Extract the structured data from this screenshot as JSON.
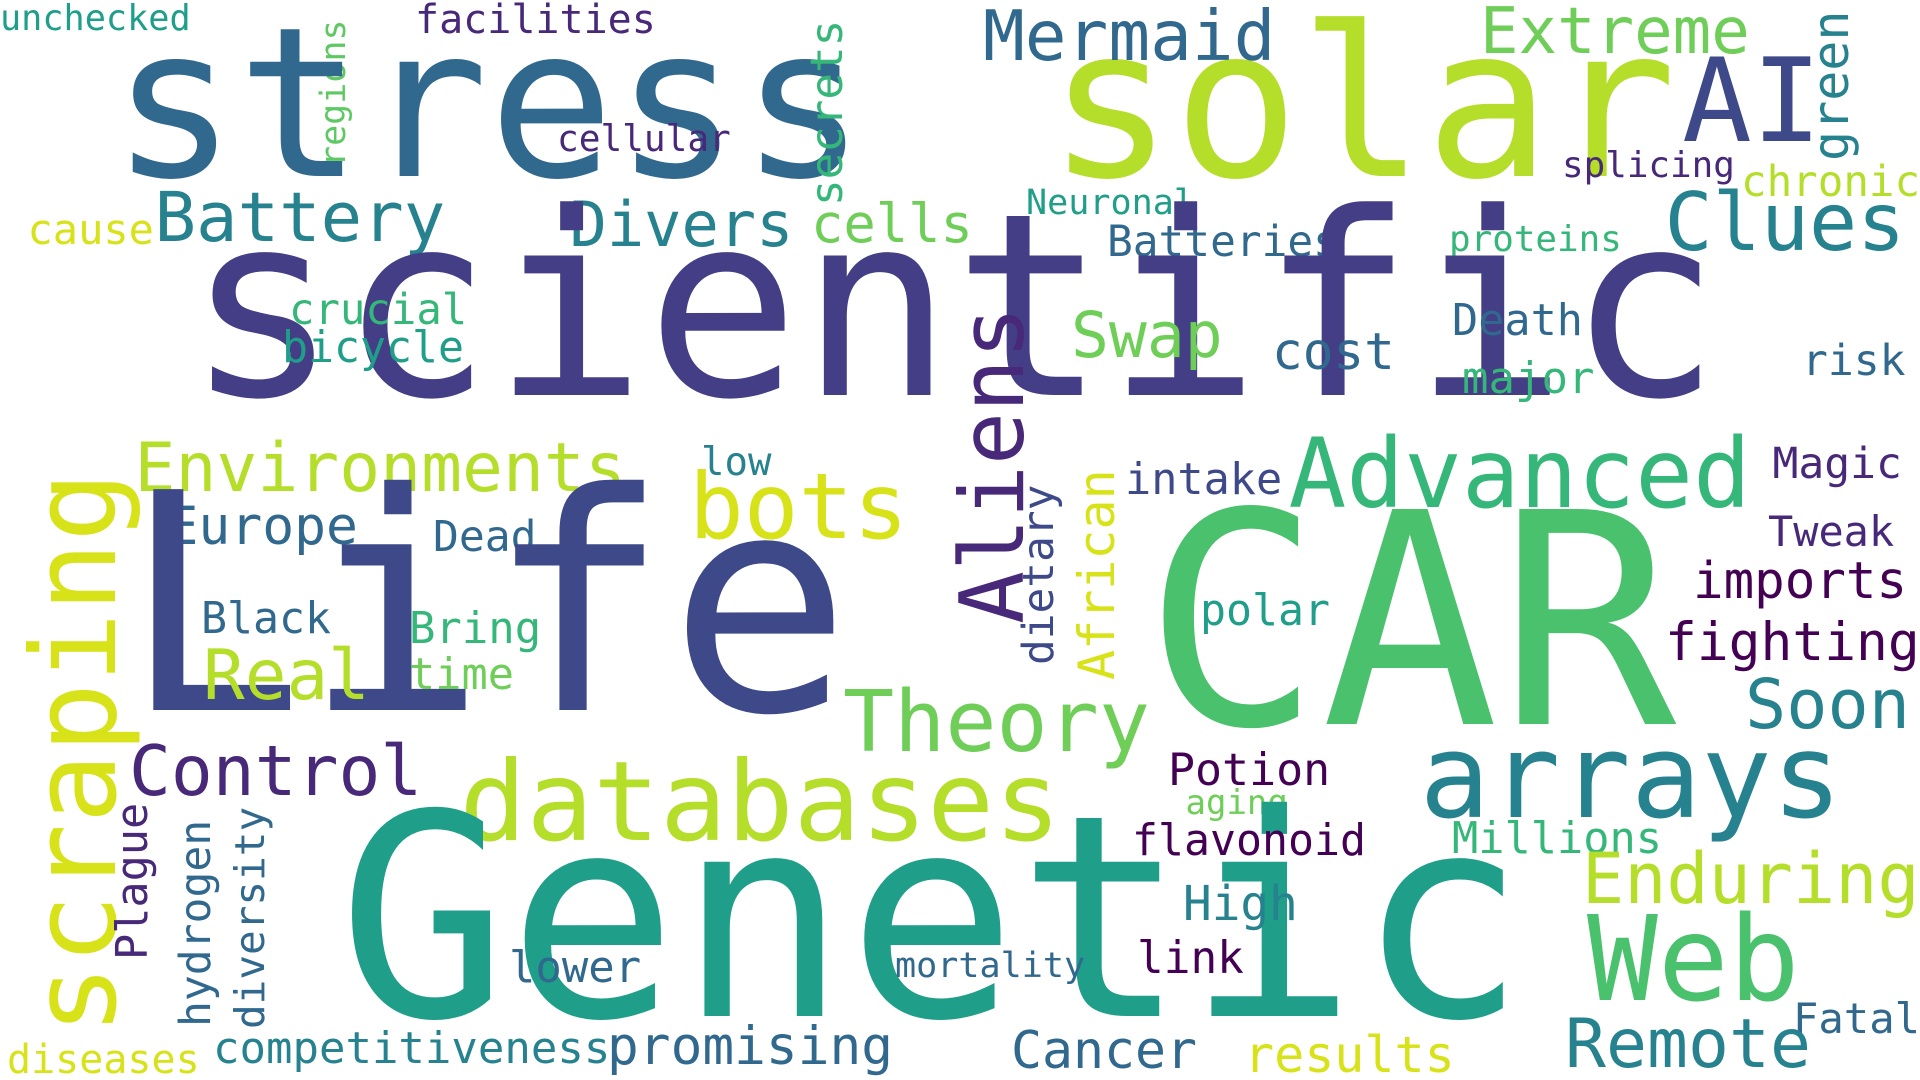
{
  "words": [
    {
      "text": "unchecked",
      "color": "#1f9e89",
      "rotate": false
    },
    {
      "text": "facilities",
      "color": "#482878",
      "rotate": false
    },
    {
      "text": "regions",
      "color": "#5ec962",
      "rotate": true
    },
    {
      "text": "stress",
      "color": "#31688e",
      "rotate": false
    },
    {
      "text": "solar",
      "color": "#b5de2b",
      "rotate": false
    },
    {
      "text": "Mermaid",
      "color": "#31688e",
      "rotate": false
    },
    {
      "text": "Extreme",
      "color": "#6ece58",
      "rotate": false
    },
    {
      "text": "green",
      "color": "#26828e",
      "rotate": true
    },
    {
      "text": "AI",
      "color": "#3e4989",
      "rotate": false
    },
    {
      "text": "secrets",
      "color": "#35b779",
      "rotate": true
    },
    {
      "text": "cellular",
      "color": "#482878",
      "rotate": false
    },
    {
      "text": "splicing",
      "color": "#482878",
      "rotate": false
    },
    {
      "text": "chronic",
      "color": "#b5de2b",
      "rotate": false
    },
    {
      "text": "Battery",
      "color": "#26828e",
      "rotate": false
    },
    {
      "text": "Divers",
      "color": "#26828e",
      "rotate": false
    },
    {
      "text": "cells",
      "color": "#6ece58",
      "rotate": false
    },
    {
      "text": "Neuronal",
      "color": "#1f9e89",
      "rotate": false
    },
    {
      "text": "Clues",
      "color": "#26828e",
      "rotate": false
    },
    {
      "text": "cause",
      "color": "#d8e219",
      "rotate": false
    },
    {
      "text": "Batteries",
      "color": "#31688e",
      "rotate": false
    },
    {
      "text": "proteins",
      "color": "#35b779",
      "rotate": false
    },
    {
      "text": "scientific",
      "color": "#433e85",
      "rotate": false
    },
    {
      "text": "crucial",
      "color": "#35b779",
      "rotate": false
    },
    {
      "text": "bicycle",
      "color": "#1f9e89",
      "rotate": false
    },
    {
      "text": "Swap",
      "color": "#6ece58",
      "rotate": false
    },
    {
      "text": "cost",
      "color": "#31688e",
      "rotate": false
    },
    {
      "text": "Death",
      "color": "#31688e",
      "rotate": false
    },
    {
      "text": "risk",
      "color": "#31688e",
      "rotate": false
    },
    {
      "text": "major",
      "color": "#35b779",
      "rotate": false
    },
    {
      "text": "Aliens",
      "color": "#482878",
      "rotate": true
    },
    {
      "text": "Environments",
      "color": "#b5de2b",
      "rotate": false
    },
    {
      "text": "low",
      "color": "#26828e",
      "rotate": false
    },
    {
      "text": "Advanced",
      "color": "#35b779",
      "rotate": false
    },
    {
      "text": "Magic",
      "color": "#482878",
      "rotate": false
    },
    {
      "text": "scraping",
      "color": "#d8e219",
      "rotate": true
    },
    {
      "text": "bots",
      "color": "#d8e219",
      "rotate": false
    },
    {
      "text": "intake",
      "color": "#3e4989",
      "rotate": false
    },
    {
      "text": "Europe",
      "color": "#31688e",
      "rotate": false
    },
    {
      "text": "Dead",
      "color": "#31688e",
      "rotate": false
    },
    {
      "text": "dietary",
      "color": "#3e4989",
      "rotate": true
    },
    {
      "text": "African",
      "color": "#d8e219",
      "rotate": true
    },
    {
      "text": "Tweak",
      "color": "#482878",
      "rotate": false
    },
    {
      "text": "Life",
      "color": "#3e4989",
      "rotate": false
    },
    {
      "text": "CAR",
      "color": "#4ac16d",
      "rotate": false
    },
    {
      "text": "imports",
      "color": "#440154",
      "rotate": false
    },
    {
      "text": "Black",
      "color": "#31688e",
      "rotate": false
    },
    {
      "text": "Bring",
      "color": "#35b779",
      "rotate": false
    },
    {
      "text": "polar",
      "color": "#1f9e89",
      "rotate": false
    },
    {
      "text": "fighting",
      "color": "#440154",
      "rotate": false
    },
    {
      "text": "Real",
      "color": "#b5de2b",
      "rotate": false
    },
    {
      "text": "time",
      "color": "#6ece58",
      "rotate": false
    },
    {
      "text": "Theory",
      "color": "#6ece58",
      "rotate": false
    },
    {
      "text": "Soon",
      "color": "#26828e",
      "rotate": false
    },
    {
      "text": "Control",
      "color": "#482878",
      "rotate": false
    },
    {
      "text": "databases",
      "color": "#b5de2b",
      "rotate": false
    },
    {
      "text": "arrays",
      "color": "#26828e",
      "rotate": false
    },
    {
      "text": "Potion",
      "color": "#440154",
      "rotate": false
    },
    {
      "text": "aging",
      "color": "#6ece58",
      "rotate": false
    },
    {
      "text": "Plague",
      "color": "#482878",
      "rotate": true
    },
    {
      "text": "hydrogen",
      "color": "#31688e",
      "rotate": true
    },
    {
      "text": "diversity",
      "color": "#31688e",
      "rotate": true
    },
    {
      "text": "Genetic",
      "color": "#1f9e89",
      "rotate": false
    },
    {
      "text": "flavonoid",
      "color": "#440154",
      "rotate": false
    },
    {
      "text": "Millions",
      "color": "#35b779",
      "rotate": false
    },
    {
      "text": "Enduring",
      "color": "#b5de2b",
      "rotate": false
    },
    {
      "text": "High",
      "color": "#26828e",
      "rotate": false
    },
    {
      "text": "Web",
      "color": "#4ac16d",
      "rotate": false
    },
    {
      "text": "link",
      "color": "#440154",
      "rotate": false
    },
    {
      "text": "lower",
      "color": "#31688e",
      "rotate": false
    },
    {
      "text": "mortality",
      "color": "#31688e",
      "rotate": false
    },
    {
      "text": "Fatal",
      "color": "#31688e",
      "rotate": false
    },
    {
      "text": "diseases",
      "color": "#d8e219",
      "rotate": false
    },
    {
      "text": "competitiveness",
      "color": "#26828e",
      "rotate": false
    },
    {
      "text": "promising",
      "color": "#31688e",
      "rotate": false
    },
    {
      "text": "Cancer",
      "color": "#31688e",
      "rotate": false
    },
    {
      "text": "results",
      "color": "#d8e219",
      "rotate": false
    },
    {
      "text": "Remote",
      "color": "#26828e",
      "rotate": false
    }
  ]
}
